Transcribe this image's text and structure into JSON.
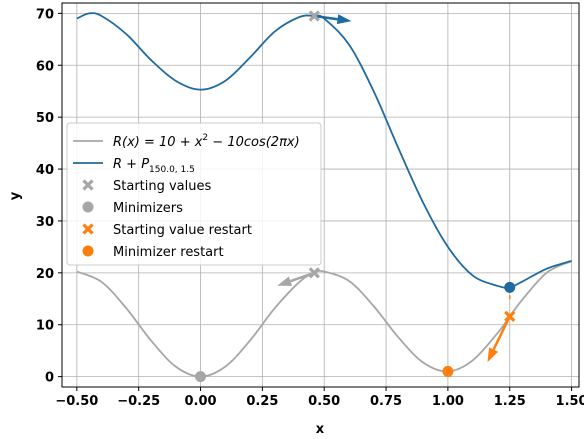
{
  "chart_data": {
    "type": "line",
    "xlabel": "x",
    "ylabel": "y",
    "xlim": [
      -0.56,
      1.53
    ],
    "ylim": [
      -2,
      72
    ],
    "xticks": [
      -0.5,
      -0.25,
      0.0,
      0.25,
      0.5,
      0.75,
      1.0,
      1.25,
      1.5
    ],
    "xtick_labels": [
      "−0.50",
      "−0.25",
      "0.00",
      "0.25",
      "0.50",
      "0.75",
      "1.00",
      "1.25",
      "1.50"
    ],
    "yticks": [
      0,
      10,
      20,
      30,
      40,
      50,
      60,
      70
    ],
    "ytick_labels": [
      "0",
      "10",
      "20",
      "30",
      "40",
      "50",
      "60",
      "70"
    ],
    "grid": true,
    "legend_position": "center-left",
    "series": [
      {
        "name": "R(x) = 10 + x² − 10cos(2πx)",
        "color": "#a6a6a6",
        "x": [
          -0.5,
          -0.4,
          -0.3,
          -0.2,
          -0.1,
          0.0,
          0.1,
          0.2,
          0.3,
          0.4,
          0.46,
          0.5,
          0.6,
          0.7,
          0.8,
          0.9,
          1.0,
          1.1,
          1.2,
          1.25,
          1.3,
          1.4,
          1.5
        ],
        "y": [
          20.25,
          18.25,
          13.18,
          6.95,
          1.92,
          0.0,
          1.92,
          6.95,
          13.18,
          18.25,
          20.03,
          20.25,
          18.45,
          13.58,
          7.55,
          2.72,
          1.0,
          3.12,
          8.35,
          11.56,
          14.78,
          20.05,
          22.25
        ]
      },
      {
        "name": "R + P",
        "color": "#1f6aa0",
        "x": [
          -0.5,
          -0.45,
          -0.4,
          -0.3,
          -0.2,
          -0.1,
          0.0,
          0.1,
          0.2,
          0.3,
          0.4,
          0.46,
          0.5,
          0.6,
          0.7,
          0.8,
          0.9,
          1.0,
          1.1,
          1.2,
          1.25,
          1.3,
          1.4,
          1.5
        ],
        "y": [
          69,
          70,
          69.5,
          66,
          61,
          57,
          55.3,
          57,
          61.5,
          66.5,
          69.3,
          69.5,
          69,
          64,
          55,
          44,
          33.5,
          25,
          19.5,
          17.5,
          17.2,
          18.3,
          20.8,
          22.3
        ]
      }
    ],
    "markers": [
      {
        "name": "Starting values",
        "shape": "x",
        "color": "#a6a6a6",
        "points": [
          [
            0.46,
            20.0
          ],
          [
            0.46,
            69.5
          ]
        ]
      },
      {
        "name": "Minimizers",
        "shape": "circle",
        "color": "#a6a6a6",
        "points": [
          [
            0.0,
            0.0
          ]
        ]
      },
      {
        "name": "Starting value restart",
        "shape": "x",
        "color": "#ff7f0e",
        "points": [
          [
            1.25,
            11.6
          ]
        ]
      },
      {
        "name": "Minimizer restart",
        "shape": "circle",
        "color": "#ff7f0e",
        "points": [
          [
            1.0,
            1.0
          ]
        ]
      },
      {
        "name": "",
        "shape": "circle",
        "color": "#1f6aa0",
        "points": [
          [
            1.25,
            17.2
          ]
        ]
      }
    ],
    "arrows": [
      {
        "color": "#1f6aa0",
        "from": [
          0.46,
          69.5
        ],
        "to": [
          0.61,
          68.5
        ]
      },
      {
        "color": "#a6a6a6",
        "from": [
          0.46,
          20.0
        ],
        "to": [
          0.31,
          17.5
        ]
      },
      {
        "color": "#ff7f0e",
        "from": [
          1.25,
          11.6
        ],
        "to": [
          1.16,
          2.8
        ]
      },
      {
        "color": "#ff7f0e",
        "from": [
          1.25,
          17.0
        ],
        "to": [
          1.25,
          11.8
        ],
        "dashed": true
      }
    ],
    "legend": [
      {
        "label_parts": [
          "R(x) = 10 + x",
          "2",
          " − 10cos(2πx)"
        ],
        "type": "line",
        "color": "#a6a6a6"
      },
      {
        "label_parts": [
          "R + P",
          "150.0, 1.5"
        ],
        "type": "line",
        "color": "#1f6aa0"
      },
      {
        "label": "Starting values",
        "type": "x",
        "color": "#a6a6a6"
      },
      {
        "label": "Minimizers",
        "type": "circle",
        "color": "#a6a6a6"
      },
      {
        "label": "Starting value restart",
        "type": "x",
        "color": "#ff7f0e"
      },
      {
        "label": "Minimizer restart",
        "type": "circle",
        "color": "#ff7f0e"
      }
    ]
  }
}
